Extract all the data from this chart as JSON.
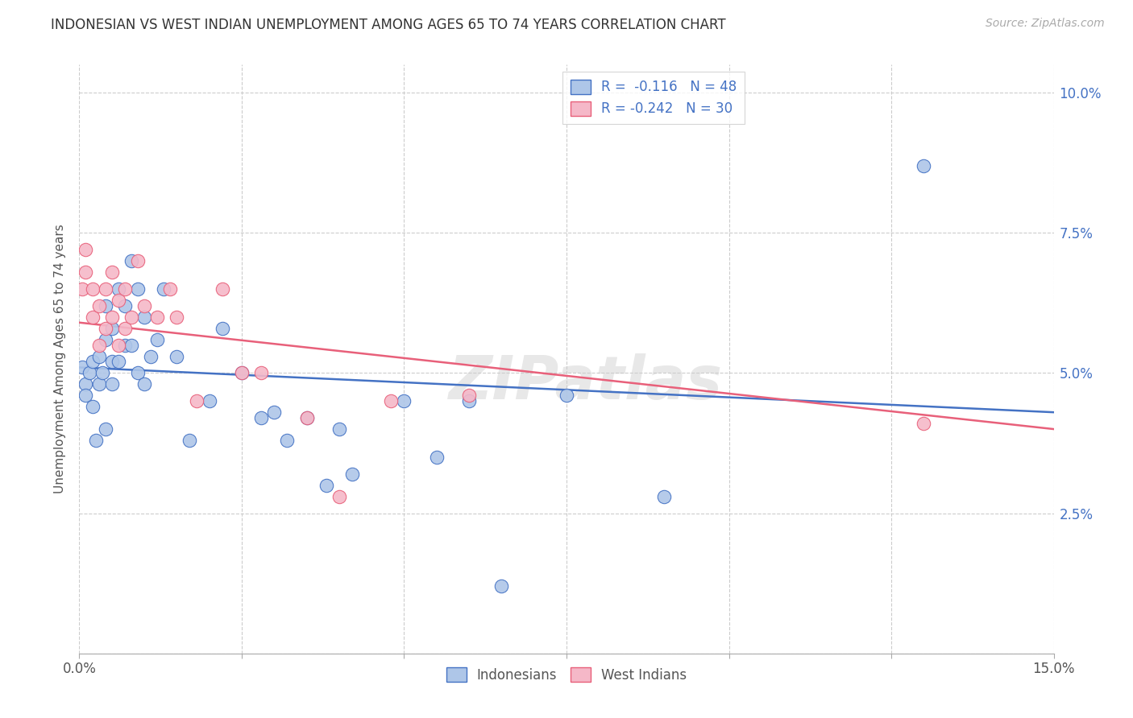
{
  "title": "INDONESIAN VS WEST INDIAN UNEMPLOYMENT AMONG AGES 65 TO 74 YEARS CORRELATION CHART",
  "source": "Source: ZipAtlas.com",
  "ylabel": "Unemployment Among Ages 65 to 74 years",
  "xlim": [
    0.0,
    0.15
  ],
  "ylim": [
    0.0,
    0.105
  ],
  "xticks": [
    0.0,
    0.025,
    0.05,
    0.075,
    0.1,
    0.125,
    0.15
  ],
  "xticklabels_show": {
    "0.0": "0.0%",
    "0.15": "15.0%"
  },
  "yticks": [
    0.0,
    0.025,
    0.05,
    0.075,
    0.1
  ],
  "yticklabels": [
    "",
    "2.5%",
    "5.0%",
    "7.5%",
    "10.0%"
  ],
  "watermark": "ZIPatlas",
  "legend_r_indonesian": "-0.116",
  "legend_n_indonesian": "48",
  "legend_r_westindian": "-0.242",
  "legend_n_westindian": "30",
  "indonesian_color": "#aec6e8",
  "westindian_color": "#f5b8c8",
  "indonesian_line_color": "#4472c4",
  "westindian_line_color": "#e8607a",
  "indonesian_x": [
    0.0005,
    0.001,
    0.001,
    0.0015,
    0.002,
    0.002,
    0.0025,
    0.003,
    0.003,
    0.0035,
    0.004,
    0.004,
    0.004,
    0.005,
    0.005,
    0.005,
    0.006,
    0.006,
    0.007,
    0.007,
    0.008,
    0.008,
    0.009,
    0.009,
    0.01,
    0.01,
    0.011,
    0.012,
    0.013,
    0.015,
    0.017,
    0.02,
    0.022,
    0.025,
    0.028,
    0.03,
    0.032,
    0.035,
    0.038,
    0.04,
    0.042,
    0.05,
    0.055,
    0.06,
    0.065,
    0.075,
    0.09,
    0.13
  ],
  "indonesian_y": [
    0.051,
    0.048,
    0.046,
    0.05,
    0.044,
    0.052,
    0.038,
    0.053,
    0.048,
    0.05,
    0.056,
    0.062,
    0.04,
    0.058,
    0.052,
    0.048,
    0.065,
    0.052,
    0.062,
    0.055,
    0.07,
    0.055,
    0.065,
    0.05,
    0.06,
    0.048,
    0.053,
    0.056,
    0.065,
    0.053,
    0.038,
    0.045,
    0.058,
    0.05,
    0.042,
    0.043,
    0.038,
    0.042,
    0.03,
    0.04,
    0.032,
    0.045,
    0.035,
    0.045,
    0.012,
    0.046,
    0.028,
    0.087
  ],
  "westindian_x": [
    0.0005,
    0.001,
    0.001,
    0.002,
    0.002,
    0.003,
    0.003,
    0.004,
    0.004,
    0.005,
    0.005,
    0.006,
    0.006,
    0.007,
    0.007,
    0.008,
    0.009,
    0.01,
    0.012,
    0.014,
    0.015,
    0.018,
    0.022,
    0.025,
    0.028,
    0.035,
    0.04,
    0.048,
    0.06,
    0.13
  ],
  "westindian_y": [
    0.065,
    0.072,
    0.068,
    0.065,
    0.06,
    0.062,
    0.055,
    0.065,
    0.058,
    0.068,
    0.06,
    0.063,
    0.055,
    0.065,
    0.058,
    0.06,
    0.07,
    0.062,
    0.06,
    0.065,
    0.06,
    0.045,
    0.065,
    0.05,
    0.05,
    0.042,
    0.028,
    0.045,
    0.046,
    0.041
  ],
  "indonesian_trend_x": [
    0.0,
    0.15
  ],
  "indonesian_trend_y": [
    0.051,
    0.043
  ],
  "westindian_trend_x": [
    0.0,
    0.15
  ],
  "westindian_trend_y": [
    0.059,
    0.04
  ]
}
